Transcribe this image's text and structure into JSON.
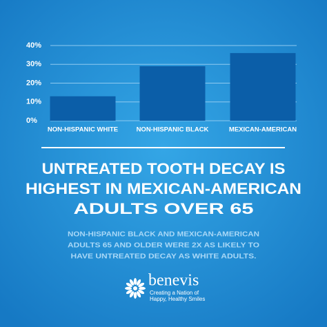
{
  "chart_data": {
    "type": "bar",
    "categories": [
      "NON-HISPANIC WHITE",
      "NON-HISPANIC BLACK",
      "MEXICAN-AMERICAN"
    ],
    "values": [
      13,
      29,
      36
    ],
    "color": "#0b5ea8",
    "ylim": [
      0,
      40
    ],
    "yticks": [
      {
        "value": 0,
        "label": "0%"
      },
      {
        "value": 10,
        "label": "10%"
      },
      {
        "value": 20,
        "label": "20%"
      },
      {
        "value": 30,
        "label": "30%"
      },
      {
        "value": 40,
        "label": "40%"
      }
    ],
    "grid": true
  },
  "headline": [
    "UNTREATED TOOTH DECAY IS",
    "HIGHEST IN MEXICAN-AMERICAN",
    "ADULTS OVER 65"
  ],
  "body": [
    "NON-HISPANIC BLACK AND MEXICAN-AMERICAN",
    "ADULTS 65 AND OLDER WERE 2X AS LIKELY TO",
    "HAVE UNTREATED DECAY AS WHITE ADULTS."
  ],
  "brand": {
    "name": "benevis",
    "tagline": [
      "Creating a Nation of",
      "Happy, Healthy Smiles"
    ]
  }
}
